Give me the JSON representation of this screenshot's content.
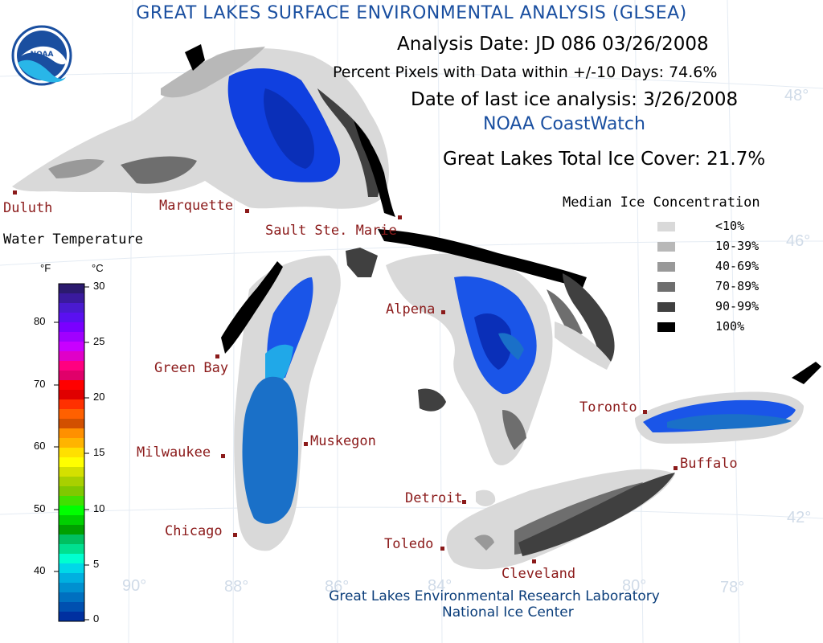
{
  "title": "GREAT LAKES SURFACE ENVIRONMENTAL ANALYSIS (GLSEA)",
  "logo_text": "NOAA",
  "analysis_date": "Analysis Date:  JD 086 03/26/2008",
  "percent_pixels": "Percent Pixels with Data within +/-10 Days:  74.6%",
  "last_ice": "Date of last ice analysis: 3/26/2008",
  "coastwatch": "NOAA CoastWatch",
  "total_ice": "Great Lakes Total Ice Cover:  21.7%",
  "ice_legend_title": "Median Ice Concentration",
  "ice_legend": [
    {
      "label": "<10%",
      "color": "#d9d9d9"
    },
    {
      "label": "10-39%",
      "color": "#b8b8b8"
    },
    {
      "label": "40-69%",
      "color": "#999999"
    },
    {
      "label": "70-89%",
      "color": "#6e6e6e"
    },
    {
      "label": "90-99%",
      "color": "#404040"
    },
    {
      "label": "100%",
      "color": "#000000"
    }
  ],
  "water_temp_title": "Water Temperature",
  "unit_f": "°F",
  "unit_c": "°C",
  "f_ticks": [
    "80",
    "70",
    "60",
    "50",
    "40"
  ],
  "c_ticks": [
    "30",
    "25",
    "20",
    "15",
    "10",
    "5",
    "0"
  ],
  "temp_colors": [
    "#2b1a6e",
    "#3a1a9e",
    "#4a1ad0",
    "#5a10f0",
    "#7a00ff",
    "#a000ff",
    "#c800ff",
    "#e000c8",
    "#ff0080",
    "#e0006a",
    "#ff0000",
    "#e00000",
    "#ff3000",
    "#ff6000",
    "#d25000",
    "#ff9000",
    "#ffb400",
    "#ffe000",
    "#ffff00",
    "#d4e000",
    "#a8d000",
    "#80c800",
    "#40e000",
    "#00ff00",
    "#00d000",
    "#00a000",
    "#00c060",
    "#00e090",
    "#00ffd0",
    "#00d8e8",
    "#00b0e0",
    "#0090d0",
    "#0070c0",
    "#0050b0",
    "#0030a0"
  ],
  "cities": [
    {
      "name": "Duluth",
      "id": "duluth"
    },
    {
      "name": "Marquette",
      "id": "marquette"
    },
    {
      "name": "Sault Ste. Marie",
      "id": "sault"
    },
    {
      "name": "Green Bay",
      "id": "greenbay"
    },
    {
      "name": "Alpena",
      "id": "alpena"
    },
    {
      "name": "Toronto",
      "id": "toronto"
    },
    {
      "name": "Muskegon",
      "id": "muskegon"
    },
    {
      "name": "Milwaukee",
      "id": "milwaukee"
    },
    {
      "name": "Buffalo",
      "id": "buffalo"
    },
    {
      "name": "Detroit",
      "id": "detroit"
    },
    {
      "name": "Chicago",
      "id": "chicago"
    },
    {
      "name": "Toledo",
      "id": "toledo"
    },
    {
      "name": "Cleveland",
      "id": "cleveland"
    }
  ],
  "grid_labels": {
    "lat48": "48°",
    "lat46": "46°",
    "lat42": "42°",
    "lon90": "90°",
    "lon88": "88°",
    "lon86": "86°",
    "lon84": "84°",
    "lon80": "80°",
    "lon78": "78°"
  },
  "footer_line1": "Great Lakes Environmental Research Laboratory",
  "footer_line2": "National Ice Center",
  "colors": {
    "title": "#1a4fa0",
    "city": "#8b1a1a",
    "footer": "#0a3d7a",
    "deep_blue": "#1040e0",
    "mid_blue": "#1a70c8",
    "light_blue": "#20a8e8"
  }
}
